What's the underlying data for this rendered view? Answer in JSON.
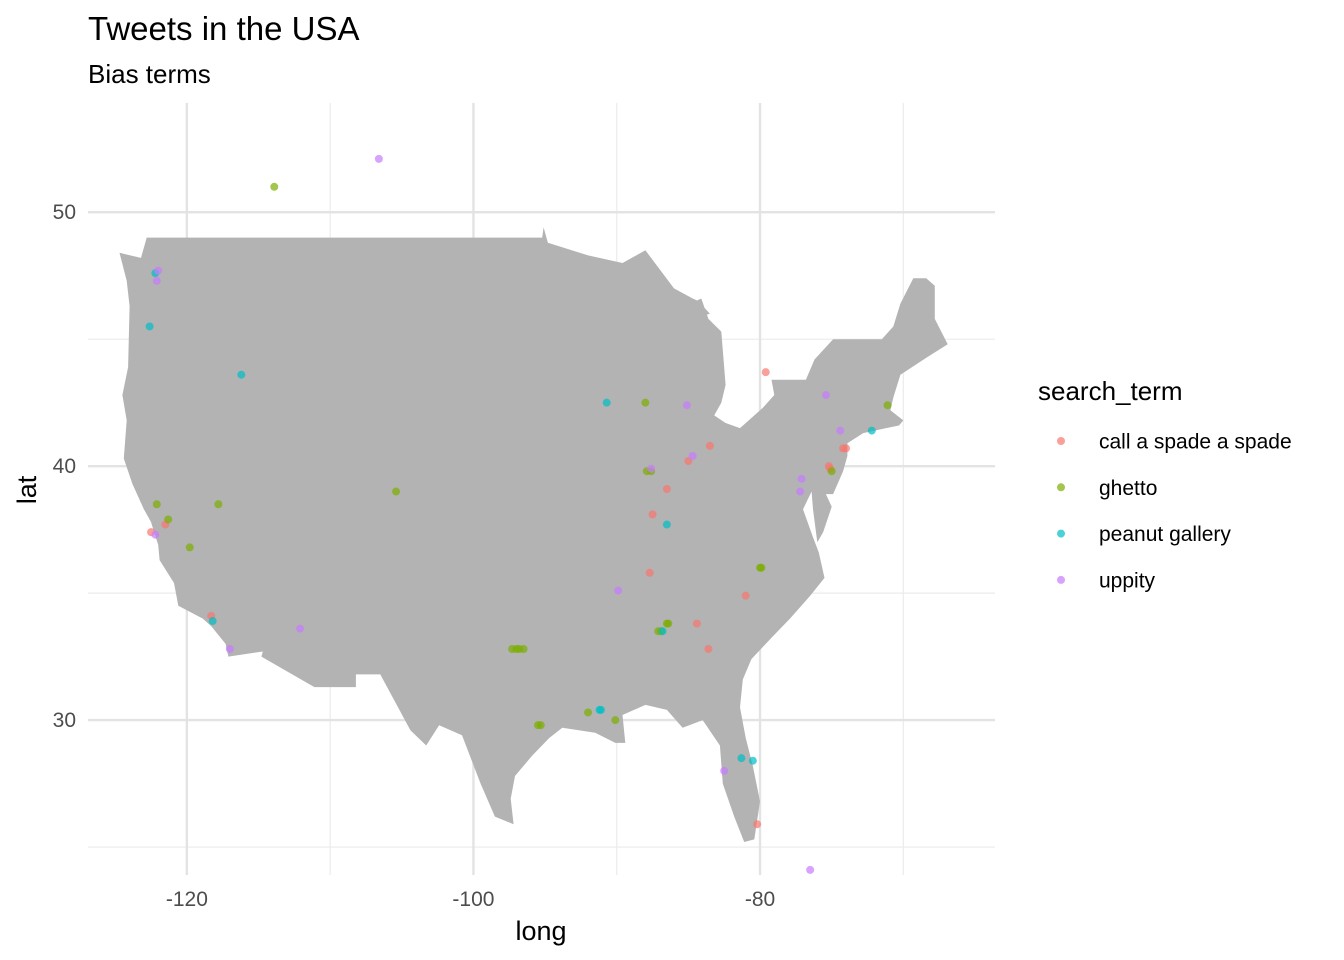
{
  "chart_data": {
    "type": "scatter",
    "title": "Tweets in the USA",
    "subtitle": "Bias terms",
    "xlabel": "long",
    "ylabel": "lat",
    "xlim": [
      -126.9,
      -63.6
    ],
    "ylim": [
      23.9,
      54.3
    ],
    "x_ticks": [
      -120,
      -100,
      -80
    ],
    "y_ticks": [
      30,
      40,
      50
    ],
    "x_tick_labels": [
      "-120",
      "-100",
      "-80"
    ],
    "y_tick_labels": [
      "30",
      "40",
      "50"
    ],
    "grid": true,
    "legend_position": "right",
    "legend_title": "search_term",
    "background_map": "contiguous United States",
    "map_color": "#b3b3b3",
    "series": [
      {
        "name": "call a spade a spade",
        "color": "#F8766D",
        "points": [
          [
            -121.5,
            37.7
          ],
          [
            -122.5,
            37.4
          ],
          [
            -118.3,
            34.1
          ],
          [
            -87.5,
            38.1
          ],
          [
            -87.7,
            35.8
          ],
          [
            -86.5,
            39.1
          ],
          [
            -85.0,
            40.2
          ],
          [
            -83.5,
            40.8
          ],
          [
            -79.6,
            43.7
          ],
          [
            -84.4,
            33.8
          ],
          [
            -83.6,
            32.8
          ],
          [
            -81.0,
            34.9
          ],
          [
            -80.2,
            25.9
          ],
          [
            -74.0,
            40.7
          ],
          [
            -74.2,
            40.7
          ],
          [
            -75.2,
            40.0
          ],
          [
            -75.1,
            39.9
          ]
        ]
      },
      {
        "name": "ghetto",
        "color": "#7CAE00",
        "points": [
          [
            -113.9,
            51.0
          ],
          [
            -122.1,
            38.5
          ],
          [
            -121.3,
            37.9
          ],
          [
            -119.8,
            36.8
          ],
          [
            -117.8,
            38.5
          ],
          [
            -105.4,
            39.0
          ],
          [
            -88.0,
            42.5
          ],
          [
            -87.9,
            39.8
          ],
          [
            -87.6,
            39.8
          ],
          [
            -87.1,
            33.5
          ],
          [
            -86.9,
            33.5
          ],
          [
            -86.5,
            33.8
          ],
          [
            -86.4,
            33.8
          ],
          [
            -80.0,
            36.0
          ],
          [
            -79.9,
            36.0
          ],
          [
            -97.3,
            32.8
          ],
          [
            -97.0,
            32.8
          ],
          [
            -96.8,
            32.8
          ],
          [
            -96.5,
            32.8
          ],
          [
            -95.5,
            29.8
          ],
          [
            -95.3,
            29.8
          ],
          [
            -92.0,
            30.3
          ],
          [
            -90.1,
            30.0
          ],
          [
            -75.0,
            39.8
          ],
          [
            -71.1,
            42.4
          ]
        ]
      },
      {
        "name": "peanut gallery",
        "color": "#00BFC4",
        "points": [
          [
            -122.2,
            47.6
          ],
          [
            -122.6,
            45.5
          ],
          [
            -116.2,
            43.6
          ],
          [
            -118.2,
            33.9
          ],
          [
            -90.7,
            42.5
          ],
          [
            -86.5,
            37.7
          ],
          [
            -91.2,
            30.4
          ],
          [
            -91.1,
            30.4
          ],
          [
            -86.8,
            33.5
          ],
          [
            -81.3,
            28.5
          ],
          [
            -80.5,
            28.4
          ],
          [
            -72.2,
            41.4
          ]
        ]
      },
      {
        "name": "uppity",
        "color": "#C77CFF",
        "points": [
          [
            -106.6,
            52.1
          ],
          [
            -122.0,
            47.7
          ],
          [
            -122.1,
            47.3
          ],
          [
            -122.2,
            37.3
          ],
          [
            -117.0,
            32.8
          ],
          [
            -112.1,
            33.6
          ],
          [
            -89.9,
            35.1
          ],
          [
            -87.6,
            39.9
          ],
          [
            -84.7,
            40.4
          ],
          [
            -85.1,
            42.4
          ],
          [
            -75.4,
            42.8
          ],
          [
            -74.4,
            41.4
          ],
          [
            -77.1,
            39.5
          ],
          [
            -77.2,
            39.0
          ],
          [
            -82.5,
            28.0
          ],
          [
            -76.5,
            24.1
          ]
        ]
      }
    ]
  }
}
